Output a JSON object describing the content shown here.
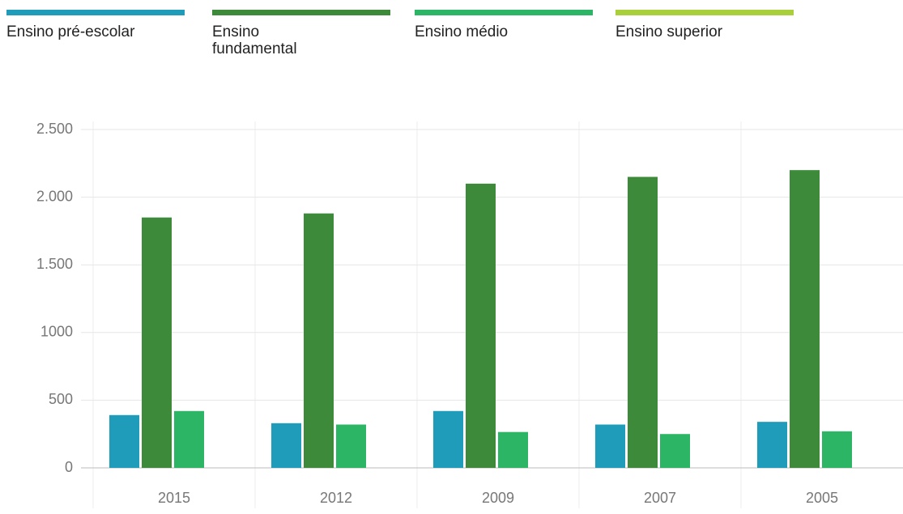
{
  "chart_data": {
    "type": "bar",
    "categories": [
      "2015",
      "2012",
      "2009",
      "2007",
      "2005"
    ],
    "series": [
      {
        "name": "Ensino pré-escolar",
        "color": "#1f9cb9",
        "values": [
          390,
          330,
          420,
          320,
          340
        ]
      },
      {
        "name": "Ensino fundamental",
        "color": "#3d8a3b",
        "values": [
          1850,
          1880,
          2100,
          2150,
          2200
        ]
      },
      {
        "name": "Ensino médio",
        "color": "#2db566",
        "values": [
          420,
          320,
          265,
          250,
          270
        ]
      },
      {
        "name": "Ensino superior",
        "color": "#a9cf3b",
        "values": [
          null,
          null,
          null,
          null,
          null
        ]
      }
    ],
    "ylim": [
      0,
      2500
    ],
    "yticks": [
      0,
      500,
      1000,
      {
        "value": 1500,
        "label": "1.500"
      },
      {
        "value": 2000,
        "label": "2.000"
      },
      {
        "value": 2500,
        "label": "2.500"
      }
    ],
    "grid": true
  }
}
